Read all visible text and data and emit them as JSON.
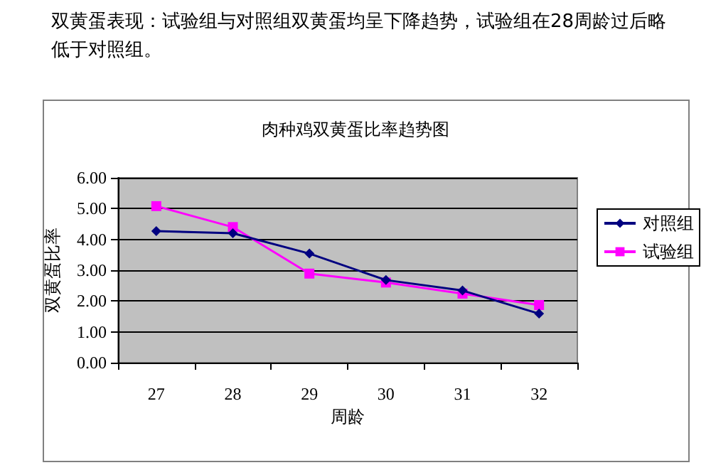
{
  "chart_data": {
    "type": "line",
    "title": "肉种鸡双黄蛋比率趋势图",
    "xlabel": "周龄",
    "ylabel": "双黄蛋比率",
    "annotations": [
      "双黄蛋表现：试验组与对照组双黄蛋均呈下降趋势，试验组在28周龄过后略低于对照组。"
    ],
    "categories": [
      "27",
      "28",
      "29",
      "30",
      "31",
      "32"
    ],
    "series": [
      {
        "name": "对照组",
        "color": "#000080",
        "marker": "diamond",
        "values": [
          4.27,
          4.2,
          3.54,
          2.68,
          2.34,
          1.59
        ]
      },
      {
        "name": "试验组",
        "color": "#ff00ff",
        "marker": "square",
        "values": [
          5.08,
          4.4,
          2.89,
          2.6,
          2.24,
          1.87
        ]
      }
    ],
    "ylim": [
      0,
      6
    ],
    "yticks": [
      {
        "value": 0,
        "label": "0.00"
      },
      {
        "value": 1,
        "label": "1.00"
      },
      {
        "value": 2,
        "label": "2.00"
      },
      {
        "value": 3,
        "label": "3.00"
      },
      {
        "value": 4,
        "label": "4.00"
      },
      {
        "value": 5,
        "label": "5.00"
      },
      {
        "value": 6,
        "label": "6.00"
      }
    ],
    "grid": "y",
    "legend": "right",
    "line_style": "solid"
  }
}
